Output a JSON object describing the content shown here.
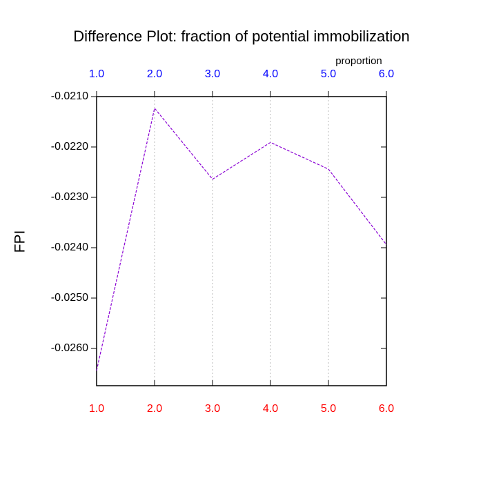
{
  "chart_data": {
    "type": "line",
    "title": "Difference Plot: fraction of potential immobilization",
    "y_label": "FPI",
    "x_top_label": "proportion",
    "x": [
      1,
      2,
      3,
      4,
      5,
      6
    ],
    "series": [
      {
        "color": "#8a00d4",
        "values": [
          -0.02644,
          -0.02123,
          -0.02264,
          -0.02191,
          -0.02244,
          -0.02394
        ]
      }
    ],
    "xlim": [
      1,
      6
    ],
    "xticks": [
      {
        "value": 1,
        "label": "1.0"
      },
      {
        "value": 2,
        "label": "2.0"
      },
      {
        "value": 3,
        "label": "3.0"
      },
      {
        "value": 4,
        "label": "4.0"
      },
      {
        "value": 5,
        "label": "5.0"
      },
      {
        "value": 6,
        "label": "6.0"
      }
    ],
    "x_top_ticks": [
      {
        "value": 1,
        "label": "1.0"
      },
      {
        "value": 2,
        "label": "2.0"
      },
      {
        "value": 3,
        "label": "3.0"
      },
      {
        "value": 4,
        "label": "4.0"
      },
      {
        "value": 5,
        "label": "5.0"
      },
      {
        "value": 6,
        "label": "6.0"
      }
    ],
    "xtick_color": "#ff0000",
    "x_top_tick_color": "#0000ff",
    "ylim": [
      -0.02674,
      -0.021
    ],
    "yticks": [
      {
        "value": -0.021,
        "label": "-0.0210"
      },
      {
        "value": -0.022,
        "label": "-0.0220"
      },
      {
        "value": -0.023,
        "label": "-0.0230"
      },
      {
        "value": -0.024,
        "label": "-0.0240"
      },
      {
        "value": -0.025,
        "label": "-0.0250"
      },
      {
        "value": -0.026,
        "label": "-0.0260"
      }
    ],
    "grid": true
  }
}
